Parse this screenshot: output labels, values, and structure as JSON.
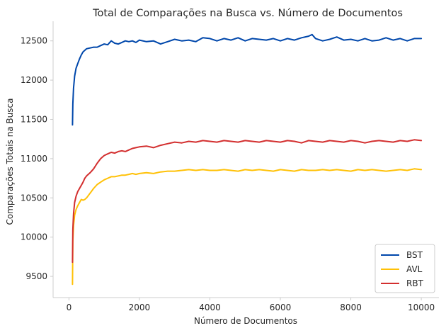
{
  "chart_data": {
    "type": "line",
    "title": "Total de Comparações na Busca vs. Número de Documentos",
    "xlabel": "Número de Documentos",
    "ylabel": "Comparações Totais na Busca",
    "xlim": [
      -450,
      10500
    ],
    "ylim": [
      9230,
      12750
    ],
    "xticks": [
      0,
      2000,
      4000,
      6000,
      8000,
      10000
    ],
    "yticks": [
      9500,
      10000,
      10500,
      11000,
      11500,
      12000,
      12500
    ],
    "grid": false,
    "legend_position": "lower-right",
    "series": [
      {
        "name": "BST",
        "color": "#0047AB",
        "x": [
          100,
          110,
          130,
          160,
          200,
          250,
          300,
          350,
          400,
          450,
          500,
          600,
          700,
          800,
          900,
          1000,
          1100,
          1200,
          1300,
          1400,
          1500,
          1600,
          1700,
          1800,
          1900,
          2000,
          2200,
          2400,
          2600,
          2800,
          3000,
          3200,
          3400,
          3600,
          3800,
          4000,
          4200,
          4400,
          4600,
          4800,
          5000,
          5200,
          5400,
          5600,
          5800,
          6000,
          6200,
          6400,
          6600,
          6800,
          6900,
          7000,
          7200,
          7400,
          7600,
          7800,
          8000,
          8200,
          8400,
          8600,
          8800,
          9000,
          9200,
          9400,
          9600,
          9800,
          10000
        ],
        "y": [
          11430,
          11700,
          11900,
          12050,
          12150,
          12210,
          12270,
          12320,
          12360,
          12380,
          12400,
          12410,
          12420,
          12420,
          12440,
          12460,
          12450,
          12500,
          12470,
          12460,
          12480,
          12500,
          12490,
          12500,
          12480,
          12510,
          12490,
          12500,
          12460,
          12490,
          12520,
          12500,
          12510,
          12490,
          12540,
          12530,
          12500,
          12530,
          12510,
          12540,
          12500,
          12530,
          12520,
          12510,
          12530,
          12500,
          12530,
          12510,
          12540,
          12560,
          12580,
          12530,
          12500,
          12520,
          12550,
          12510,
          12520,
          12500,
          12530,
          12500,
          12510,
          12540,
          12510,
          12530,
          12500,
          12530,
          12530
        ]
      },
      {
        "name": "AVL",
        "color": "#FFC107",
        "x": [
          100,
          110,
          130,
          160,
          200,
          250,
          300,
          350,
          400,
          450,
          500,
          600,
          700,
          800,
          900,
          1000,
          1100,
          1200,
          1300,
          1400,
          1500,
          1600,
          1700,
          1800,
          1900,
          2000,
          2200,
          2400,
          2600,
          2800,
          3000,
          3200,
          3400,
          3600,
          3800,
          4000,
          4200,
          4400,
          4600,
          4800,
          5000,
          5200,
          5400,
          5600,
          5800,
          6000,
          6200,
          6400,
          6600,
          6800,
          7000,
          7200,
          7400,
          7600,
          7800,
          8000,
          8200,
          8400,
          8600,
          8800,
          9000,
          9200,
          9400,
          9600,
          9800,
          10000
        ],
        "y": [
          9400,
          9950,
          10150,
          10280,
          10350,
          10400,
          10440,
          10480,
          10470,
          10480,
          10500,
          10560,
          10620,
          10670,
          10700,
          10730,
          10750,
          10770,
          10770,
          10780,
          10790,
          10790,
          10800,
          10810,
          10800,
          10810,
          10820,
          10810,
          10830,
          10840,
          10840,
          10850,
          10860,
          10850,
          10860,
          10850,
          10850,
          10860,
          10850,
          10840,
          10860,
          10850,
          10860,
          10850,
          10840,
          10860,
          10850,
          10840,
          10860,
          10850,
          10850,
          10860,
          10850,
          10860,
          10850,
          10840,
          10860,
          10850,
          10860,
          10850,
          10840,
          10850,
          10860,
          10850,
          10870,
          10860
        ]
      },
      {
        "name": "RBT",
        "color": "#D32F2F",
        "x": [
          100,
          110,
          130,
          160,
          200,
          250,
          300,
          350,
          400,
          450,
          500,
          600,
          700,
          800,
          900,
          1000,
          1100,
          1200,
          1300,
          1400,
          1500,
          1600,
          1700,
          1800,
          1900,
          2000,
          2200,
          2400,
          2600,
          2800,
          3000,
          3200,
          3400,
          3600,
          3800,
          4000,
          4200,
          4400,
          4600,
          4800,
          5000,
          5200,
          5400,
          5600,
          5800,
          6000,
          6200,
          6400,
          6600,
          6800,
          7000,
          7200,
          7400,
          7600,
          7800,
          8000,
          8200,
          8400,
          8600,
          8800,
          9000,
          9200,
          9400,
          9600,
          9800,
          10000
        ],
        "y": [
          9680,
          10100,
          10300,
          10440,
          10520,
          10580,
          10620,
          10660,
          10700,
          10750,
          10780,
          10820,
          10870,
          10940,
          11000,
          11040,
          11060,
          11080,
          11070,
          11090,
          11100,
          11090,
          11110,
          11130,
          11140,
          11150,
          11160,
          11140,
          11170,
          11190,
          11210,
          11200,
          11220,
          11210,
          11230,
          11220,
          11210,
          11230,
          11220,
          11210,
          11230,
          11220,
          11210,
          11230,
          11220,
          11210,
          11230,
          11220,
          11200,
          11230,
          11220,
          11210,
          11230,
          11220,
          11210,
          11230,
          11220,
          11200,
          11220,
          11230,
          11220,
          11210,
          11230,
          11220,
          11240,
          11230
        ]
      }
    ]
  }
}
